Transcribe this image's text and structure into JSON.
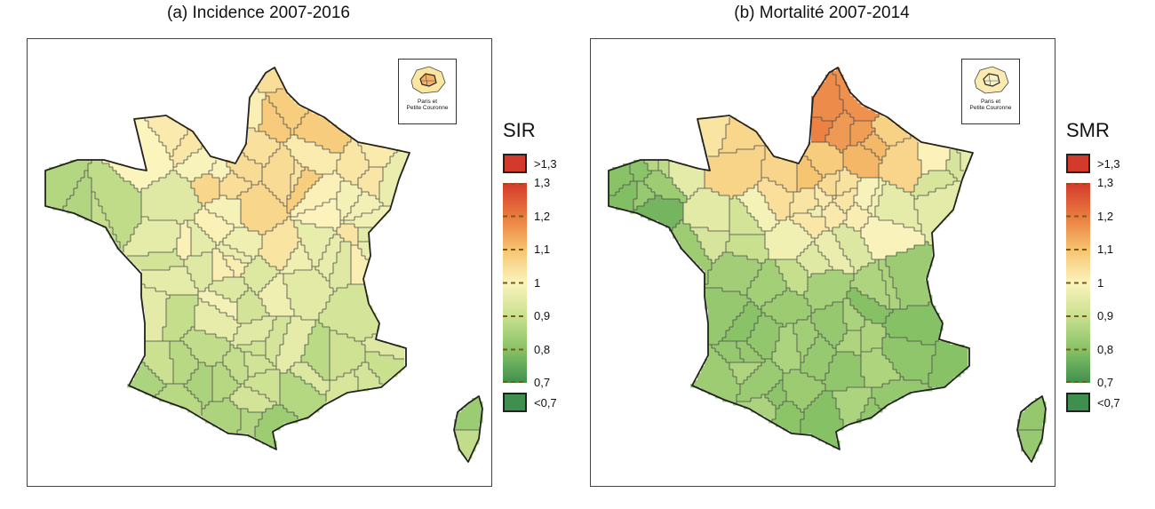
{
  "panels": [
    {
      "id": "a",
      "title": "(a) Incidence 2007-2016",
      "legend_title": "SIR",
      "above_label": ">1,3",
      "below_label": "<0,7",
      "region_count": 90,
      "seed": 11,
      "hot_zone": "north-east",
      "inset_label": "Paris et\nPetite Couronne"
    },
    {
      "id": "b",
      "title": "(b) Mortalité 2007-2014",
      "legend_title": "SMR",
      "above_label": ">1,3",
      "below_label": "<0,7",
      "region_count": 90,
      "seed": 29,
      "hot_zone": "north",
      "inset_label": "Paris et\nPetite Couronne"
    }
  ],
  "legend": {
    "ticks": [
      "1,3",
      "1,2",
      "1,1",
      "1",
      "0,9",
      "0,8",
      "0,7"
    ],
    "colors": {
      "above": "#d33a2c",
      "below": "#3f8f4f",
      "scale": [
        "#d33a2c",
        "#ea7a3f",
        "#f6c46f",
        "#fbf4bd",
        "#c9e08f",
        "#88c266",
        "#3f8f4f"
      ]
    }
  },
  "colors": {
    "border": "#222222",
    "region_stroke": "#4a4a4a"
  }
}
